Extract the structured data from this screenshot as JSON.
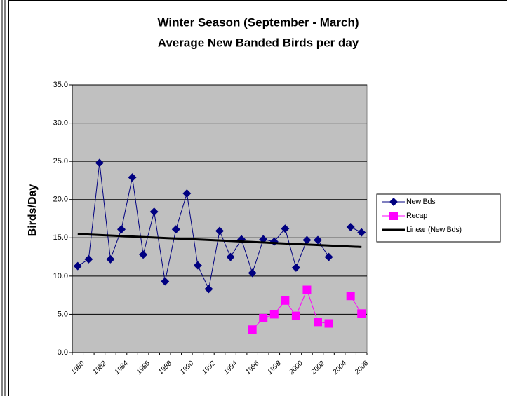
{
  "chart_data": {
    "type": "line",
    "title": "Winter Season (September - March)",
    "subtitle": "Average New Banded Birds per day",
    "y_label": "Birds/Day",
    "categories": [
      "1980",
      null,
      "1982",
      null,
      "1984",
      null,
      "1986",
      null,
      "1988",
      null,
      "1990",
      null,
      "1992",
      null,
      "1994",
      null,
      "1996",
      null,
      "1998",
      null,
      "2000",
      null,
      "2002",
      null,
      "2004",
      null,
      "2006"
    ],
    "series": [
      {
        "name": "New Bds",
        "color": "#000080",
        "marker": "diamond",
        "values": [
          11.3,
          12.2,
          24.8,
          12.2,
          16.1,
          22.9,
          12.8,
          18.4,
          9.3,
          16.1,
          20.8,
          11.4,
          8.3,
          15.9,
          12.5,
          14.8,
          10.4,
          14.8,
          14.5,
          16.2,
          11.1,
          14.7,
          14.7,
          12.5,
          null,
          16.4,
          15.7
        ]
      },
      {
        "name": "Recap",
        "color": "#ff00ff",
        "marker": "square",
        "values": [
          null,
          null,
          null,
          null,
          null,
          null,
          null,
          null,
          null,
          null,
          null,
          null,
          null,
          null,
          null,
          null,
          3.0,
          4.5,
          5.0,
          6.8,
          4.8,
          8.2,
          4.0,
          3.8,
          null,
          7.4,
          5.1
        ]
      }
    ],
    "trendline": {
      "name": "Linear (New Bds)",
      "color": "#000000",
      "values": [
        15.5,
        13.8
      ]
    },
    "ylim": [
      0,
      35
    ],
    "yticks": [
      {
        "value": 0,
        "label": "0.0"
      },
      {
        "value": 5,
        "label": "5.0"
      },
      {
        "value": 10,
        "label": "10.0"
      },
      {
        "value": 15,
        "label": "15.0"
      },
      {
        "value": 20,
        "label": "20.0"
      },
      {
        "value": 25,
        "label": "25.0"
      },
      {
        "value": 30,
        "label": "30.0"
      },
      {
        "value": 35,
        "label": "35.0"
      }
    ],
    "grid": true,
    "plot_background": "#c0c0c0",
    "legend": "right"
  }
}
